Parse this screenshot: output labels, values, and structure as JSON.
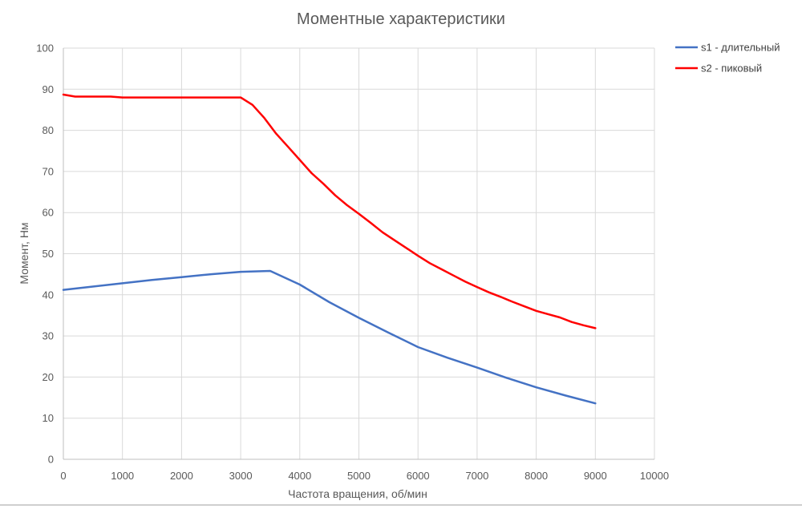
{
  "chart_data": {
    "type": "line",
    "title": "Моментные характеристики",
    "xlabel": "Частота вращения, об/мин",
    "ylabel": "Момент, Нм",
    "xlim": [
      0,
      10000
    ],
    "ylim": [
      0,
      100
    ],
    "xticks": [
      0,
      1000,
      2000,
      3000,
      4000,
      5000,
      6000,
      7000,
      8000,
      9000,
      10000
    ],
    "yticks": [
      0,
      10,
      20,
      30,
      40,
      50,
      60,
      70,
      80,
      90,
      100
    ],
    "grid": true,
    "legend_position": "top-right",
    "series": [
      {
        "name": "s1 - длительный",
        "color": "#4472c4",
        "x": [
          0,
          500,
          1000,
          1500,
          2000,
          2500,
          3000,
          3500,
          4000,
          4500,
          5000,
          5500,
          6000,
          6500,
          7000,
          7500,
          8000,
          8500,
          9000
        ],
        "y": [
          41.2,
          42.0,
          42.8,
          43.6,
          44.3,
          45.0,
          45.6,
          45.8,
          42.5,
          38.2,
          34.4,
          30.8,
          27.3,
          24.7,
          22.3,
          19.8,
          17.5,
          15.5,
          13.6
        ]
      },
      {
        "name": "s2 - пиковый",
        "color": "#ff0000",
        "x": [
          0,
          200,
          800,
          1000,
          2000,
          2500,
          3000,
          3200,
          3400,
          3600,
          3800,
          4000,
          4200,
          4400,
          4600,
          4800,
          5000,
          5200,
          5400,
          5600,
          5800,
          6000,
          6200,
          6400,
          6600,
          6800,
          7000,
          7200,
          7400,
          7600,
          7800,
          8000,
          8200,
          8400,
          8600,
          8800,
          9000
        ],
        "y": [
          88.7,
          88.2,
          88.2,
          88.0,
          88.0,
          88.0,
          88.0,
          86.2,
          83.0,
          79.2,
          76.0,
          72.8,
          69.6,
          67.0,
          64.2,
          61.8,
          59.7,
          57.5,
          55.2,
          53.3,
          51.4,
          49.5,
          47.7,
          46.2,
          44.7,
          43.2,
          41.9,
          40.6,
          39.5,
          38.3,
          37.2,
          36.1,
          35.3,
          34.5,
          33.4,
          32.6,
          31.9
        ]
      }
    ]
  }
}
